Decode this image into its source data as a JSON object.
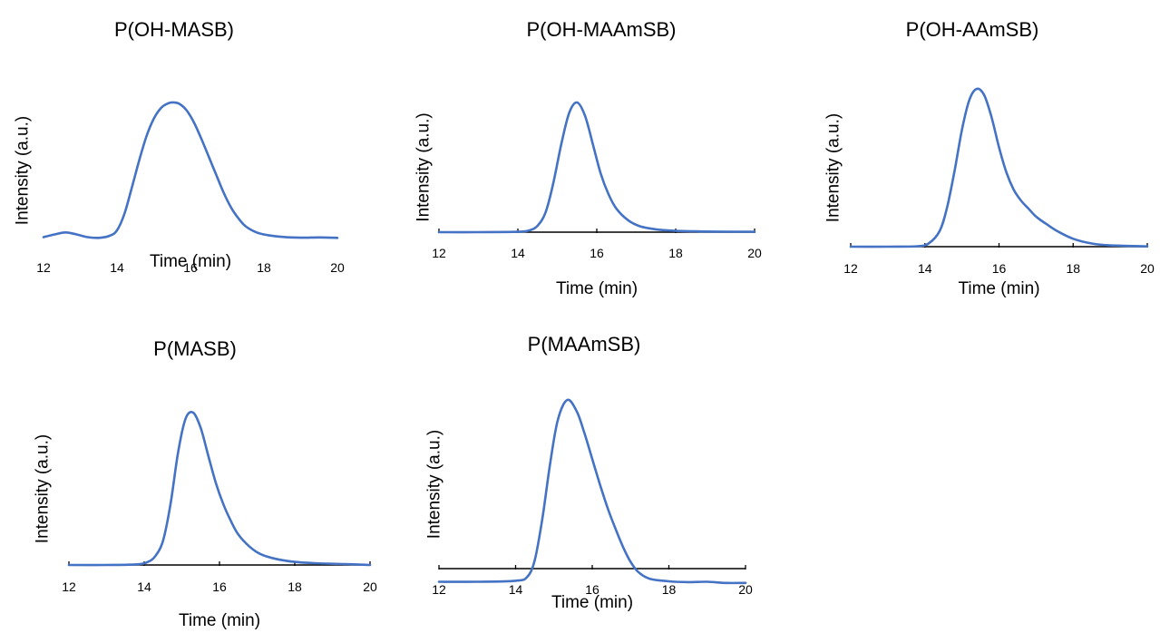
{
  "colors": {
    "series": "#4472C4",
    "axis": "#000000"
  },
  "chart_data": [
    {
      "type": "line",
      "title": "P(OH-MASB)",
      "xlabel": "Time (min)",
      "ylabel": "Intensity (a.u.)",
      "xlim": [
        12,
        20
      ],
      "xticks": [
        "12",
        "14",
        "16",
        "18",
        "20"
      ],
      "grid": false,
      "series": [
        {
          "x": [
            12.0,
            12.3,
            12.6,
            12.9,
            13.2,
            13.5,
            13.8,
            14.0,
            14.2,
            14.4,
            14.6,
            14.8,
            15.0,
            15.2,
            15.4,
            15.55,
            15.7,
            15.9,
            16.1,
            16.3,
            16.5,
            16.7,
            16.9,
            17.1,
            17.3,
            17.5,
            17.8,
            18.1,
            18.5,
            19.0,
            19.5,
            20.0
          ],
          "y": [
            0.01,
            0.03,
            0.045,
            0.03,
            0.01,
            0.005,
            0.02,
            0.06,
            0.18,
            0.37,
            0.57,
            0.75,
            0.88,
            0.96,
            0.995,
            1.0,
            0.99,
            0.94,
            0.85,
            0.73,
            0.6,
            0.47,
            0.34,
            0.23,
            0.15,
            0.09,
            0.045,
            0.025,
            0.012,
            0.006,
            0.008,
            0.005
          ]
        }
      ]
    },
    {
      "type": "line",
      "title": "P(OH-MAAmSB)",
      "xlabel": "Time (min)",
      "ylabel": "Intensity (a.u.)",
      "xlim": [
        12,
        20
      ],
      "xticks": [
        "12",
        "14",
        "16",
        "18",
        "20"
      ],
      "grid": false,
      "series": [
        {
          "x": [
            12.0,
            13.0,
            14.0,
            14.3,
            14.5,
            14.7,
            14.9,
            15.1,
            15.3,
            15.5,
            15.7,
            15.9,
            16.1,
            16.3,
            16.5,
            16.8,
            17.1,
            17.5,
            18.0,
            18.5,
            19.0,
            20.0
          ],
          "y": [
            0.0,
            0.0,
            0.003,
            0.015,
            0.05,
            0.15,
            0.38,
            0.68,
            0.92,
            1.0,
            0.9,
            0.68,
            0.45,
            0.29,
            0.18,
            0.09,
            0.045,
            0.022,
            0.01,
            0.006,
            0.004,
            0.003
          ]
        }
      ]
    },
    {
      "type": "line",
      "title": "P(OH-AAmSB)",
      "xlabel": "Time (min)",
      "ylabel": "Intensity (a.u.)",
      "xlim": [
        12,
        20
      ],
      "xticks": [
        "12",
        "14",
        "16",
        "18",
        "20"
      ],
      "grid": false,
      "series": [
        {
          "x": [
            12.0,
            13.0,
            13.8,
            14.1,
            14.4,
            14.6,
            14.8,
            15.0,
            15.2,
            15.4,
            15.6,
            15.8,
            16.0,
            16.2,
            16.4,
            16.6,
            16.8,
            17.0,
            17.3,
            17.6,
            18.0,
            18.5,
            19.0,
            20.0
          ],
          "y": [
            0.0,
            0.0,
            0.003,
            0.02,
            0.1,
            0.25,
            0.48,
            0.74,
            0.93,
            1.0,
            0.96,
            0.82,
            0.63,
            0.47,
            0.36,
            0.29,
            0.24,
            0.19,
            0.14,
            0.095,
            0.05,
            0.02,
            0.008,
            0.002
          ]
        }
      ]
    },
    {
      "type": "line",
      "title": "P(MASB)",
      "xlabel": "Time (min)",
      "ylabel": "Intensity (a.u.)",
      "xlim": [
        12,
        20
      ],
      "xticks": [
        "12",
        "14",
        "16",
        "18",
        "20"
      ],
      "grid": false,
      "series": [
        {
          "x": [
            12.0,
            13.0,
            13.8,
            14.1,
            14.3,
            14.5,
            14.7,
            14.9,
            15.1,
            15.3,
            15.5,
            15.7,
            15.9,
            16.1,
            16.3,
            16.5,
            16.8,
            17.1,
            17.5,
            18.0,
            18.5,
            19.0,
            19.5,
            20.0
          ],
          "y": [
            0.0,
            0.0,
            0.004,
            0.02,
            0.06,
            0.16,
            0.4,
            0.74,
            0.96,
            1.0,
            0.9,
            0.72,
            0.54,
            0.4,
            0.29,
            0.2,
            0.12,
            0.07,
            0.04,
            0.02,
            0.012,
            0.008,
            0.005,
            0.0
          ]
        }
      ]
    },
    {
      "type": "line",
      "title": "P(MAAmSB)",
      "xlabel": "Time (min)",
      "ylabel": "Intensity (a.u.)",
      "xlim": [
        12,
        20
      ],
      "xticks": [
        "12",
        "14",
        "16",
        "18",
        "20"
      ],
      "grid": false,
      "series": [
        {
          "x": [
            12.0,
            13.0,
            14.0,
            14.3,
            14.5,
            14.7,
            14.9,
            15.1,
            15.35,
            15.6,
            15.8,
            16.0,
            16.2,
            16.4,
            16.6,
            16.8,
            17.0,
            17.2,
            17.5,
            18.0,
            18.5,
            19.0,
            19.5,
            20.0
          ],
          "y": [
            -0.078,
            -0.078,
            -0.072,
            -0.05,
            0.05,
            0.3,
            0.62,
            0.88,
            1.0,
            0.93,
            0.8,
            0.65,
            0.5,
            0.36,
            0.24,
            0.13,
            0.04,
            -0.02,
            -0.06,
            -0.075,
            -0.08,
            -0.078,
            -0.085,
            -0.085
          ]
        }
      ]
    }
  ]
}
